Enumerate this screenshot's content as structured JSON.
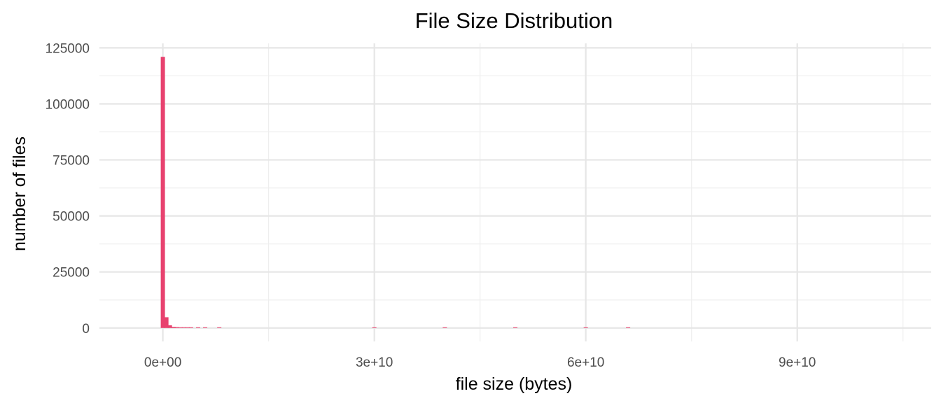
{
  "chart_data": {
    "type": "bar",
    "title": "File Size Distribution",
    "xlabel": "file size (bytes)",
    "ylabel": "number of files",
    "xlim": [
      -9000000000,
      109000000000
    ],
    "ylim": [
      -6000,
      127000
    ],
    "x_ticks": [
      0,
      30000000000,
      60000000000,
      90000000000
    ],
    "x_tick_labels": [
      "0e+00",
      "3e+10",
      "6e+10",
      "9e+10"
    ],
    "x_minor_ticks": [
      15000000000,
      45000000000,
      75000000000,
      105000000000
    ],
    "y_ticks": [
      0,
      25000,
      50000,
      75000,
      100000,
      125000
    ],
    "y_tick_labels": [
      "0",
      "25000",
      "50000",
      "75000",
      "100000",
      "125000"
    ],
    "y_minor_ticks": [
      12500,
      37500,
      62500,
      87500,
      112500
    ],
    "bin_width": 500000000,
    "bins": [
      {
        "x": 0,
        "count": 121000
      },
      {
        "x": 500000000,
        "count": 4800
      },
      {
        "x": 1000000000,
        "count": 1200
      },
      {
        "x": 1500000000,
        "count": 500
      },
      {
        "x": 2000000000,
        "count": 400
      },
      {
        "x": 2500000000,
        "count": 300
      },
      {
        "x": 3000000000,
        "count": 250
      },
      {
        "x": 3500000000,
        "count": 200
      },
      {
        "x": 4000000000,
        "count": 150
      },
      {
        "x": 5000000000,
        "count": 100
      },
      {
        "x": 6000000000,
        "count": 80
      },
      {
        "x": 8000000000,
        "count": 50
      },
      {
        "x": 30000000000,
        "count": 30
      },
      {
        "x": 40000000000,
        "count": 25
      },
      {
        "x": 50000000000,
        "count": 20
      },
      {
        "x": 60000000000,
        "count": 15
      },
      {
        "x": 66000000000,
        "count": 10
      }
    ],
    "bar_color": "#E8426F",
    "grid": true,
    "legend": "none"
  }
}
